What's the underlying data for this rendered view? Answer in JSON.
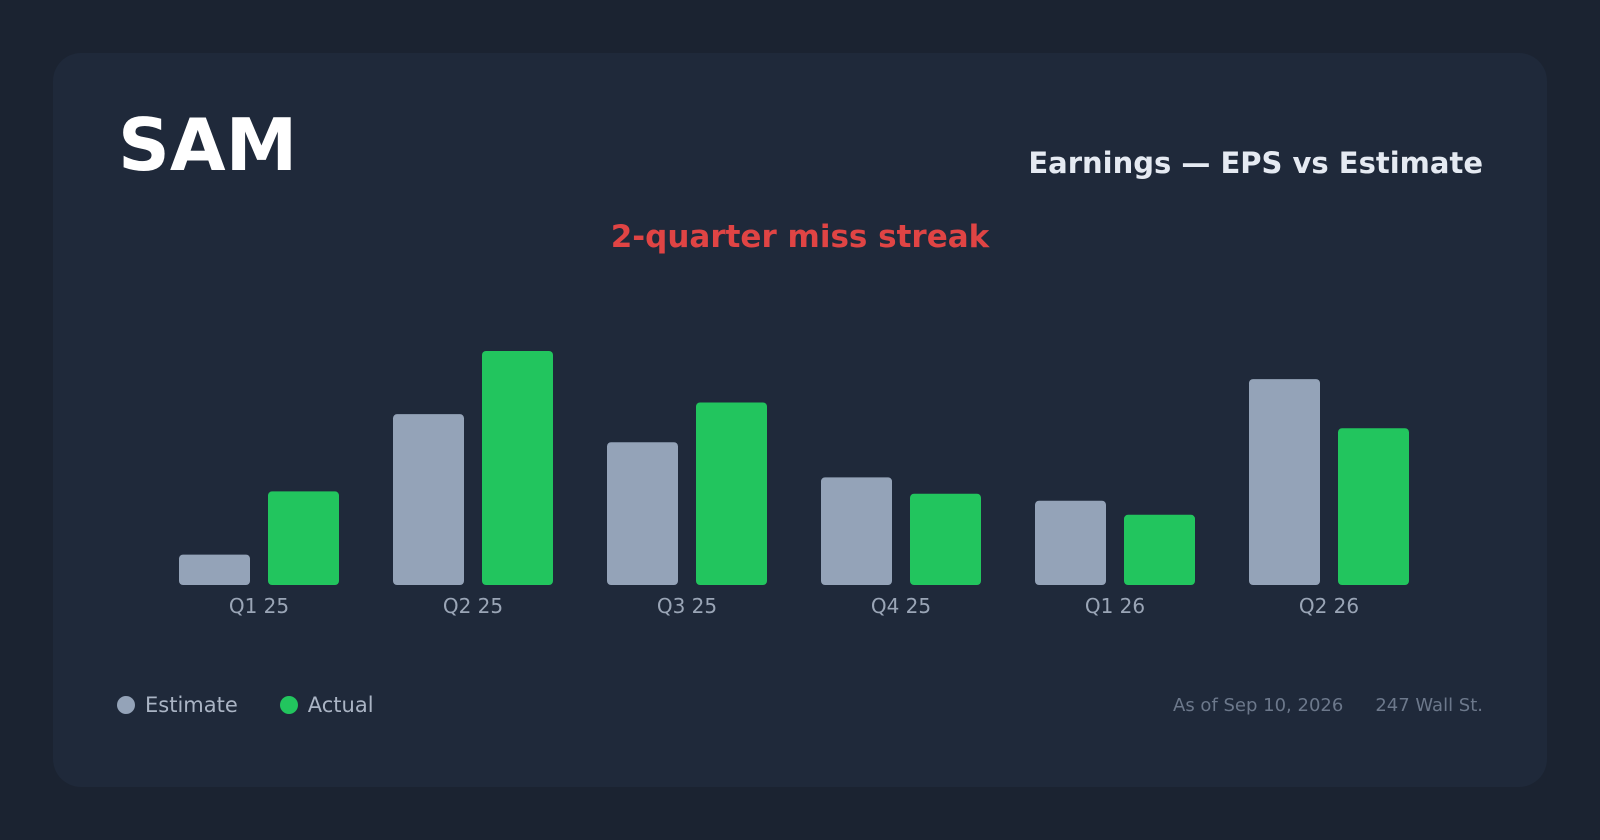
{
  "ticker": "SAM",
  "subtitle": "Earnings — EPS vs Estimate",
  "streak_label": "2-quarter miss streak",
  "legend": {
    "estimate_label": "Estimate",
    "actual_label": "Actual"
  },
  "footer": {
    "as_of": "As of Sep 10, 2026",
    "source": "247 Wall St."
  },
  "colors": {
    "estimate": "#94a3b8",
    "actual": "#22c55e",
    "streak": "#e04444"
  },
  "chart_data": {
    "type": "bar",
    "title": "Earnings — EPS vs Estimate",
    "xlabel": "",
    "ylabel": "",
    "categories": [
      "Q1 25",
      "Q2 25",
      "Q3 25",
      "Q4 25",
      "Q1 26",
      "Q2 26"
    ],
    "series": [
      {
        "name": "Estimate",
        "values": [
          0.13,
          0.73,
          0.61,
          0.46,
          0.36,
          0.88
        ]
      },
      {
        "name": "Actual",
        "values": [
          0.4,
          1.0,
          0.78,
          0.39,
          0.3,
          0.67
        ]
      }
    ],
    "ylim": [
      0,
      1.0
    ],
    "grid": false,
    "legend_position": "bottom-left"
  }
}
